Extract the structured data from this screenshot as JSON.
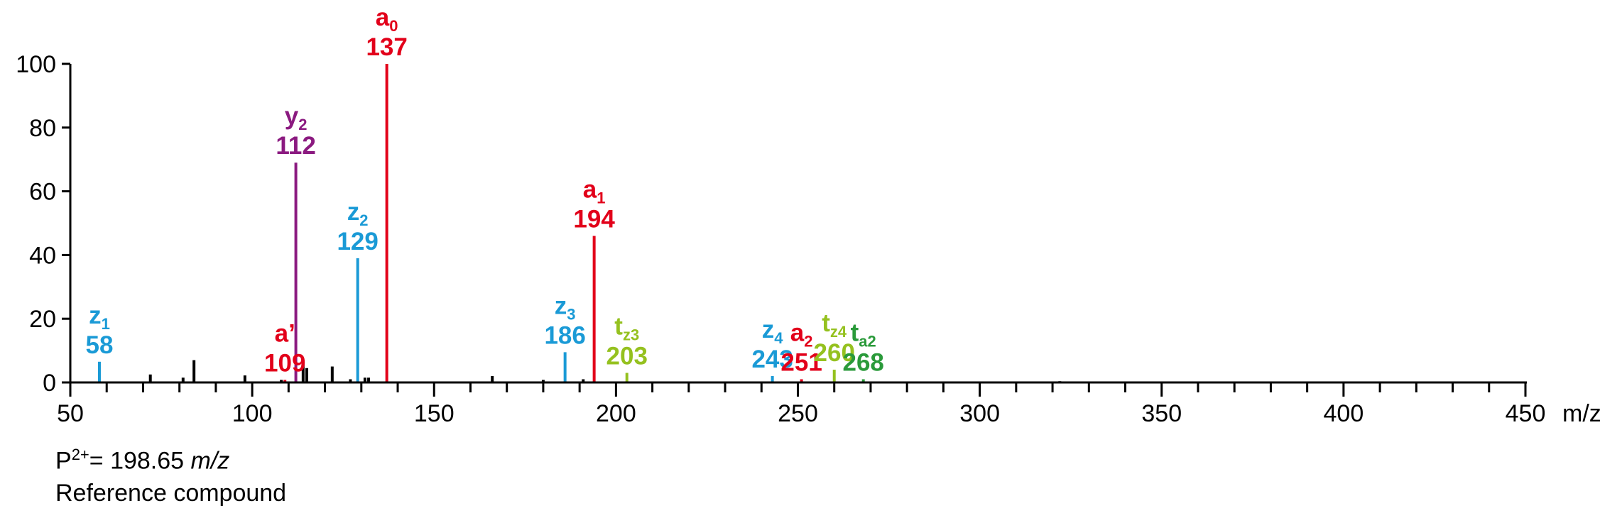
{
  "chart_data": {
    "type": "bar",
    "xlabel": "m/z",
    "ylabel": "",
    "xlim": [
      50,
      450
    ],
    "ylim": [
      0,
      100
    ],
    "x_ticks": [
      50,
      100,
      150,
      200,
      250,
      300,
      350,
      400,
      450
    ],
    "y_ticks": [
      0,
      20,
      40,
      60,
      80,
      100
    ],
    "grid": false,
    "colors": {
      "a": "#e2001a",
      "y": "#8b1a80",
      "z": "#1a9ad6",
      "t_z": "#95c11f",
      "t_a": "#2a9a3a",
      "background": "#000000"
    },
    "labeled_peaks": [
      {
        "ion": "z",
        "sub": "1",
        "mz_label": "58",
        "x": 58,
        "y": 6.5,
        "color": "#1a9ad6"
      },
      {
        "ion": "a’",
        "sub": "",
        "mz_label": "109",
        "x": 109,
        "y": 0.8,
        "color": "#e2001a"
      },
      {
        "ion": "y",
        "sub": "2",
        "mz_label": "112",
        "x": 112,
        "y": 69,
        "color": "#8b1a80"
      },
      {
        "ion": "z",
        "sub": "2",
        "mz_label": "129",
        "x": 129,
        "y": 39,
        "color": "#1a9ad6"
      },
      {
        "ion": "a",
        "sub": "0",
        "mz_label": "137",
        "x": 137,
        "y": 100,
        "color": "#e2001a"
      },
      {
        "ion": "z",
        "sub": "3",
        "mz_label": "186",
        "x": 186,
        "y": 9.5,
        "color": "#1a9ad6"
      },
      {
        "ion": "a",
        "sub": "1",
        "mz_label": "194",
        "x": 194,
        "y": 46,
        "color": "#e2001a"
      },
      {
        "ion": "t",
        "sub": "z3",
        "mz_label": "203",
        "x": 203,
        "y": 3,
        "color": "#95c11f"
      },
      {
        "ion": "z",
        "sub": "4",
        "mz_label": "243",
        "x": 243,
        "y": 2,
        "color": "#1a9ad6"
      },
      {
        "ion": "a",
        "sub": "2",
        "mz_label": "251",
        "x": 251,
        "y": 1,
        "color": "#e2001a"
      },
      {
        "ion": "t",
        "sub": "z4",
        "mz_label": "260",
        "x": 260,
        "y": 4,
        "color": "#95c11f"
      },
      {
        "ion": "t",
        "sub": "a2",
        "mz_label": "268",
        "x": 268,
        "y": 1,
        "color": "#2a9a3a"
      }
    ],
    "background_peaks": [
      {
        "x": 72,
        "y": 2.5
      },
      {
        "x": 81,
        "y": 1.5
      },
      {
        "x": 84,
        "y": 7
      },
      {
        "x": 98,
        "y": 2.2
      },
      {
        "x": 108,
        "y": 0.8
      },
      {
        "x": 114,
        "y": 6
      },
      {
        "x": 115,
        "y": 4.5
      },
      {
        "x": 122,
        "y": 5
      },
      {
        "x": 127,
        "y": 1
      },
      {
        "x": 131,
        "y": 1.5
      },
      {
        "x": 132,
        "y": 1.5
      },
      {
        "x": 166,
        "y": 2
      },
      {
        "x": 180,
        "y": 0.8
      },
      {
        "x": 191,
        "y": 1
      },
      {
        "x": 322,
        "y": 0.4
      }
    ]
  },
  "notes": {
    "precursor_prefix": "P",
    "precursor_charge": "2+",
    "precursor_value": "= 198.65 ",
    "precursor_unit": "m/z",
    "compound": "Reference compound"
  }
}
